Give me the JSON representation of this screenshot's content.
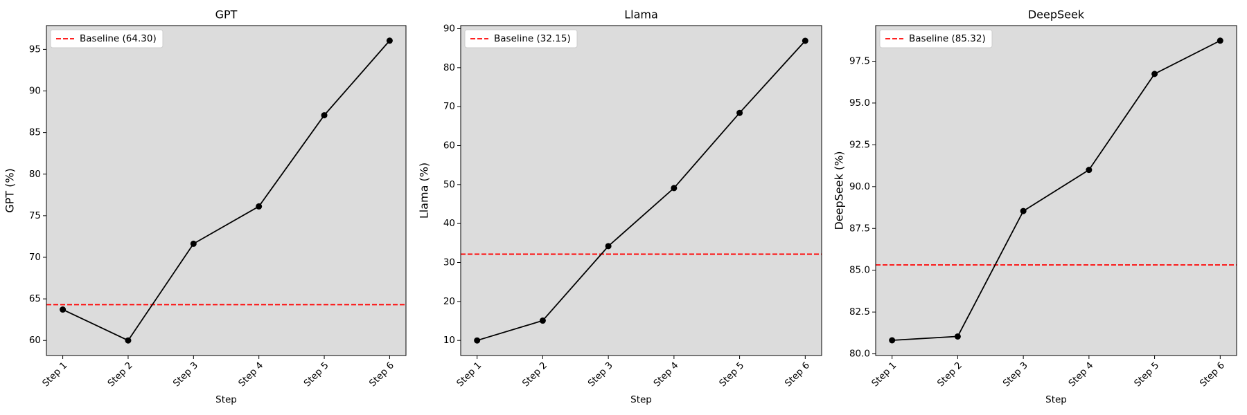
{
  "chart_data": [
    {
      "type": "line",
      "title": "GPT",
      "xlabel": "Step",
      "ylabel": "GPT (%)",
      "categories": [
        "Step 1",
        "Step 2",
        "Step 3",
        "Step 4",
        "Step 5",
        "Step 6"
      ],
      "values": [
        63.72,
        60.0,
        71.63,
        76.12,
        87.08,
        96.05
      ],
      "color": "#000000",
      "baseline": {
        "label": "Baseline (64.30)",
        "value": 64.3,
        "color": "#ff0000"
      },
      "ylim": [
        58.19,
        97.86
      ],
      "yticks": [
        60,
        65,
        70,
        75,
        80,
        85,
        90,
        95
      ]
    },
    {
      "type": "line",
      "title": "Llama",
      "xlabel": "Step",
      "ylabel": "Llama (%)",
      "categories": [
        "Step 1",
        "Step 2",
        "Step 3",
        "Step 4",
        "Step 5",
        "Step 6"
      ],
      "values": [
        10.0,
        15.09,
        34.2,
        49.1,
        68.4,
        86.9
      ],
      "color": "#000000",
      "baseline": {
        "label": "Baseline (32.15)",
        "value": 32.15,
        "color": "#ff0000"
      },
      "ylim": [
        6.13,
        90.8
      ],
      "yticks": [
        10,
        20,
        30,
        40,
        50,
        60,
        70,
        80,
        90
      ]
    },
    {
      "type": "line",
      "title": "DeepSeek",
      "xlabel": "Step",
      "ylabel": "DeepSeek (%)",
      "categories": [
        "Step 1",
        "Step 2",
        "Step 3",
        "Step 4",
        "Step 5",
        "Step 6"
      ],
      "values": [
        80.81,
        81.04,
        88.54,
        91.0,
        96.74,
        98.73
      ],
      "color": "#000000",
      "baseline": {
        "label": "Baseline (85.32)",
        "value": 85.32,
        "color": "#ff0000"
      },
      "ylim": [
        79.9,
        99.63
      ],
      "yticks": [
        {
          "value": 80,
          "label": "80.0"
        },
        82.5,
        {
          "value": 85,
          "label": "85.0"
        },
        87.5,
        {
          "value": 90,
          "label": "90.0"
        },
        92.5,
        {
          "value": 95,
          "label": "95.0"
        },
        97.5
      ]
    }
  ]
}
